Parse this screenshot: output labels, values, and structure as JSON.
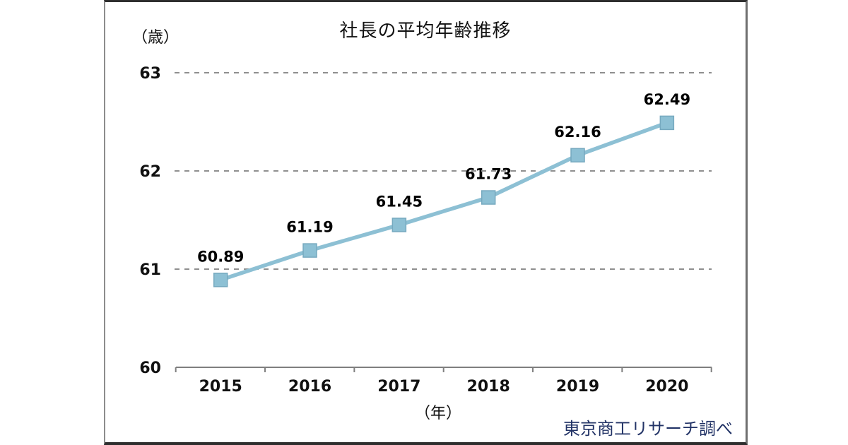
{
  "figure": {
    "title": "社長の平均年齢推移",
    "y_unit_label": "（歳）",
    "x_unit_label": "（年）",
    "source": "東京商工リサーチ調べ"
  },
  "chart_data": {
    "type": "line",
    "title": "社長の平均年齢推移",
    "categories": [
      "2015",
      "2016",
      "2017",
      "2018",
      "2019",
      "2020"
    ],
    "values": [
      60.89,
      61.19,
      61.45,
      61.73,
      62.16,
      62.49
    ],
    "data_labels": [
      "60.89",
      "61.19",
      "61.45",
      "61.73",
      "62.16",
      "62.49"
    ],
    "xlabel": "（年）",
    "ylabel": "（歳）",
    "ylim": [
      60,
      63
    ],
    "yticks": [
      60,
      61,
      62,
      63
    ],
    "grid": "horizontal-dashed",
    "legend": "none",
    "marker": "square",
    "source_note": "東京商工リサーチ調べ"
  },
  "colors": {
    "line": "#8dc0d4",
    "marker_fill": "#8dc0d4",
    "marker_edge": "#76a9bf",
    "grid": "#8f8f8f",
    "axis": "#7f7f7f",
    "text": "#111111",
    "data_label_text": "#000000",
    "source_text": "#223366",
    "background": "#ffffff"
  }
}
